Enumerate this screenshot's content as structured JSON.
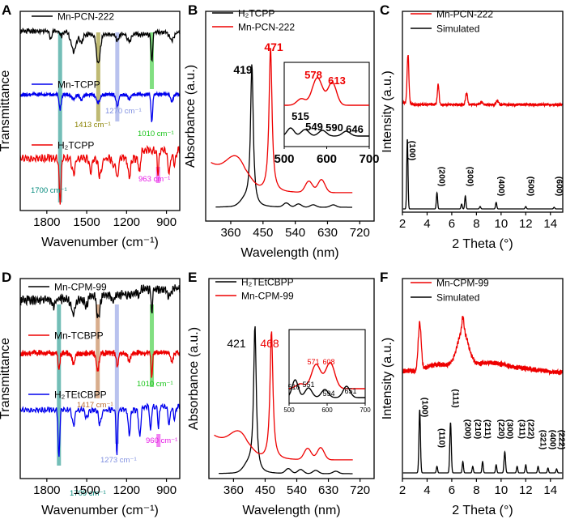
{
  "chart_data": [
    {
      "panel": "A",
      "type": "line",
      "xlabel": "Wavenumber (cm⁻¹)",
      "ylabel": "Transmittance",
      "xlim": [
        2000,
        800
      ],
      "xticks": [
        1800,
        1500,
        1200,
        900
      ],
      "series": [
        {
          "name": "Mn-PCN-222",
          "color": "#000000"
        },
        {
          "name": "Mn-TCPP",
          "color": "#0000ee"
        },
        {
          "name": "H₂TCPP",
          "color": "#ee0000"
        }
      ],
      "bands": [
        {
          "label": "1700 cm⁻¹",
          "x": 1700,
          "color": "#00897b"
        },
        {
          "label": "1413 cm⁻¹",
          "x": 1413,
          "color": "#8a8200"
        },
        {
          "label": "1270 cm⁻¹",
          "x": 1270,
          "color": "#7f8fe0"
        },
        {
          "label": "1010 cm⁻¹",
          "x": 1010,
          "color": "#19c419"
        },
        {
          "label": "963 cm⁻¹",
          "x": 963,
          "color": "#e619e6"
        }
      ]
    },
    {
      "panel": "B",
      "type": "line",
      "xlabel": "Wavelength (nm)",
      "ylabel": "Absorbance (a.u.)",
      "xlim": [
        290,
        760
      ],
      "xticks": [
        360,
        450,
        540,
        630,
        720
      ],
      "series": [
        {
          "name": "H₂TCPP",
          "color": "#000000",
          "peak": 419
        },
        {
          "name": "Mn-PCN-222",
          "color": "#ee0000",
          "peak": 471
        }
      ],
      "peak_labels": [
        "419",
        "471"
      ],
      "inset": {
        "xlim": [
          500,
          700
        ],
        "xticks": [
          500,
          600,
          700
        ],
        "red_peaks": [
          "578",
          "613"
        ],
        "black_peaks": [
          "515",
          "549",
          "590",
          "646"
        ]
      }
    },
    {
      "panel": "C",
      "type": "line",
      "xlabel": "2 Theta (°)",
      "ylabel": "Intensity (a.u.)",
      "xlim": [
        2,
        15
      ],
      "xticks": [
        2,
        4,
        6,
        8,
        10,
        12,
        14
      ],
      "series": [
        {
          "name": "Mn-PCN-222",
          "color": "#ee0000"
        },
        {
          "name": "Simulated",
          "color": "#000000"
        }
      ],
      "hkl": [
        {
          "label": "(100)",
          "x": 2.4
        },
        {
          "label": "(200)",
          "x": 4.8
        },
        {
          "label": "(300)",
          "x": 7.1
        },
        {
          "label": "(400)",
          "x": 9.6
        },
        {
          "label": "(500)",
          "x": 12.0
        },
        {
          "label": "(600)",
          "x": 14.3
        }
      ]
    },
    {
      "panel": "D",
      "type": "line",
      "xlabel": "Wavenumber (cm⁻¹)",
      "ylabel": "Transmittance",
      "xlim": [
        2000,
        800
      ],
      "xticks": [
        1800,
        1500,
        1200,
        900
      ],
      "series": [
        {
          "name": "Mn-CPM-99",
          "color": "#000000"
        },
        {
          "name": "Mn-TCBPP",
          "color": "#ee0000"
        },
        {
          "name": "H₂TEtCBPP",
          "color": "#0000ee"
        }
      ],
      "bands": [
        {
          "label": "1709 cm⁻¹",
          "x": 1709,
          "color": "#00897b"
        },
        {
          "label": "1417 cm⁻¹",
          "x": 1417,
          "color": "#b86a30"
        },
        {
          "label": "1273 cm⁻¹",
          "x": 1273,
          "color": "#7f8fe0"
        },
        {
          "label": "1010 cm⁻¹",
          "x": 1010,
          "color": "#19c419"
        },
        {
          "label": "960 cm⁻¹",
          "x": 960,
          "color": "#e619e6"
        }
      ]
    },
    {
      "panel": "E",
      "type": "line",
      "xlabel": "Wavelength (nm)",
      "ylabel": "Absorbance (a.u.)",
      "xlim": [
        290,
        760
      ],
      "xticks": [
        360,
        450,
        540,
        630,
        720
      ],
      "series": [
        {
          "name": "H₂TEtCBPP",
          "color": "#000000",
          "peak": 421
        },
        {
          "name": "Mn-CPM-99",
          "color": "#ee0000",
          "peak": 468
        }
      ],
      "peak_labels": [
        "421",
        "468"
      ],
      "inset": {
        "xlim": [
          500,
          700
        ],
        "xticks": [
          500,
          600,
          700
        ],
        "red_peaks": [
          "571",
          "608"
        ],
        "black_peaks": [
          "516",
          "551",
          "594",
          "651"
        ]
      }
    },
    {
      "panel": "F",
      "type": "line",
      "xlabel": "2 Theta (°)",
      "ylabel": "Intensity (a.u.)",
      "xlim": [
        2,
        15
      ],
      "xticks": [
        2,
        4,
        6,
        8,
        10,
        12,
        14
      ],
      "series": [
        {
          "name": "Mn-CPM-99",
          "color": "#ee0000"
        },
        {
          "name": "Simulated",
          "color": "#000000"
        }
      ],
      "hkl": [
        {
          "label": "(100)",
          "x": 3.4
        },
        {
          "label": "(110)",
          "x": 4.8
        },
        {
          "label": "(111)",
          "x": 5.9
        },
        {
          "label": "(200)",
          "x": 6.9
        },
        {
          "label": "(210)",
          "x": 7.7
        },
        {
          "label": "(211)",
          "x": 8.5
        },
        {
          "label": "(220)",
          "x": 9.6
        },
        {
          "label": "(300)",
          "x": 10.3
        },
        {
          "label": "(311)",
          "x": 11.3
        },
        {
          "label": "(222)",
          "x": 12.0
        },
        {
          "label": "(321)",
          "x": 13.0
        },
        {
          "label": "(400)",
          "x": 13.8
        },
        {
          "label": "(222)",
          "x": 14.5
        }
      ]
    }
  ]
}
